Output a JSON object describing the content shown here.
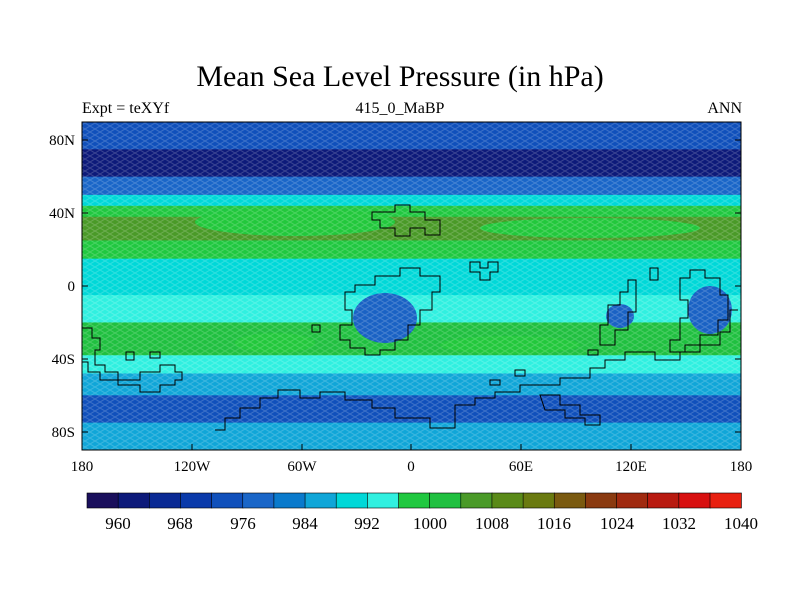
{
  "title": "Mean Sea Level Pressure (in hPa)",
  "subtitle_left": "Expt = teXYf",
  "subtitle_center": "415_0_MaBP",
  "subtitle_right": "ANN",
  "y_axis_labels": [
    "80N",
    "40N",
    "0",
    "40S",
    "80S"
  ],
  "x_axis_labels": [
    "180",
    "120W",
    "60W",
    "0",
    "60E",
    "120E",
    "180"
  ],
  "colorbar": {
    "colors": [
      "#1a0f5c",
      "#0d1a7a",
      "#0a2a94",
      "#0a3aaa",
      "#1050bb",
      "#1a66c8",
      "#0a7acc",
      "#10a6d8",
      "#00d8d8",
      "#30f0e0",
      "#20c840",
      "#20c040",
      "#4a9a28",
      "#5a8a18",
      "#6a7a10",
      "#7a5a10",
      "#8a3a10",
      "#a02a10",
      "#b81a10",
      "#d81010",
      "#e82010"
    ],
    "labels": [
      "960",
      "968",
      "976",
      "984",
      "992",
      "1000",
      "1008",
      "1016",
      "1024",
      "1032",
      "1040"
    ]
  },
  "map_data": {
    "lon_range": [
      -180,
      180
    ],
    "lat_range": [
      -90,
      90
    ],
    "contour_interval_hpa": 4,
    "pressure_bands_hpa": [
      {
        "lat": [
          75,
          90
        ],
        "value": 972
      },
      {
        "lat": [
          60,
          75
        ],
        "value": 960
      },
      {
        "lat": [
          50,
          60
        ],
        "value": 976
      },
      {
        "lat": [
          44,
          50
        ],
        "value": 988
      },
      {
        "lat": [
          38,
          44
        ],
        "value": 996
      },
      {
        "lat": [
          25,
          38
        ],
        "value": 1004
      },
      {
        "lat": [
          15,
          25
        ],
        "value": 996
      },
      {
        "lat": [
          -5,
          15
        ],
        "value": 988
      },
      {
        "lat": [
          -20,
          -5
        ],
        "value": 992
      },
      {
        "lat": [
          -38,
          -20
        ],
        "value": 1000
      },
      {
        "lat": [
          -48,
          -38
        ],
        "value": 992
      },
      {
        "lat": [
          -60,
          -48
        ],
        "value": 984
      },
      {
        "lat": [
          -75,
          -60
        ],
        "value": 972
      },
      {
        "lat": [
          -90,
          -75
        ],
        "value": 984
      }
    ]
  }
}
